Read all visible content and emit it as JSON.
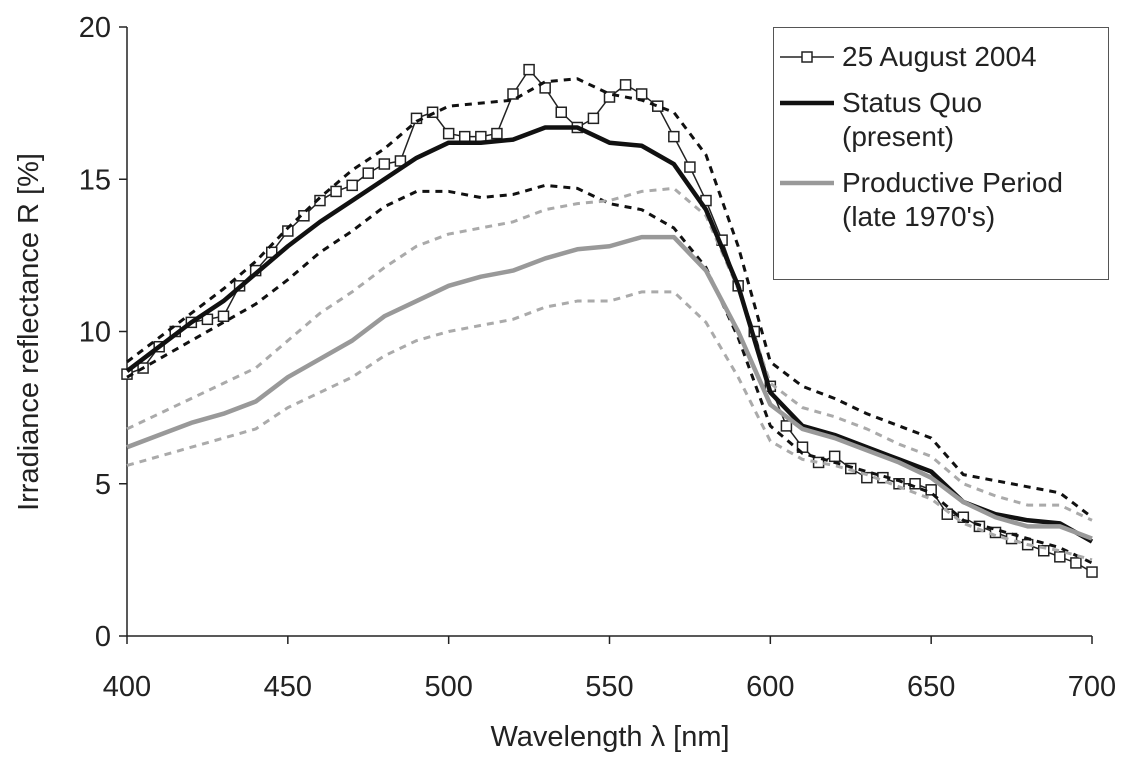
{
  "chart_data": {
    "type": "line",
    "x_label": "Wavelength λ [nm]",
    "y_label": "Irradiance reflectance R [%]",
    "xlim": [
      400,
      700
    ],
    "xticks": [
      400,
      450,
      500,
      550,
      600,
      650,
      700
    ],
    "ylim": [
      0,
      20
    ],
    "yticks": [
      0,
      5,
      10,
      15,
      20
    ],
    "series": [
      {
        "name": "25 August 2004",
        "color": "#222222",
        "width": 1.5,
        "marker": "square",
        "x": [
          400,
          405,
          410,
          415,
          420,
          425,
          430,
          435,
          440,
          445,
          450,
          455,
          460,
          465,
          470,
          475,
          480,
          485,
          490,
          495,
          500,
          505,
          510,
          515,
          520,
          525,
          530,
          535,
          540,
          545,
          550,
          555,
          560,
          565,
          570,
          575,
          580,
          585,
          590,
          595,
          600,
          605,
          610,
          615,
          620,
          625,
          630,
          635,
          640,
          645,
          650,
          655,
          660,
          665,
          670,
          675,
          680,
          685,
          690,
          695,
          700
        ],
        "values": [
          8.6,
          8.8,
          9.5,
          10.0,
          10.3,
          10.4,
          10.5,
          11.5,
          12.0,
          12.6,
          13.3,
          13.8,
          14.3,
          14.6,
          14.8,
          15.2,
          15.5,
          15.6,
          17.0,
          17.2,
          16.5,
          16.4,
          16.4,
          16.5,
          17.8,
          18.6,
          18.0,
          17.2,
          16.7,
          17.0,
          17.7,
          18.1,
          17.8,
          17.4,
          16.4,
          15.4,
          14.3,
          13.0,
          11.5,
          10.0,
          8.2,
          6.9,
          6.2,
          5.7,
          5.9,
          5.5,
          5.2,
          5.2,
          5.0,
          5.0,
          4.8,
          4.0,
          3.9,
          3.6,
          3.4,
          3.2,
          3.0,
          2.8,
          2.6,
          2.4,
          2.1
        ]
      },
      {
        "color": "#111111",
        "width": 3,
        "dash": true,
        "x": [
          400,
          410,
          420,
          430,
          440,
          450,
          460,
          470,
          480,
          490,
          500,
          510,
          520,
          530,
          540,
          550,
          560,
          570,
          580,
          590,
          600,
          610,
          620,
          630,
          640,
          650,
          660,
          670,
          680,
          690,
          700
        ],
        "values": [
          9.0,
          9.8,
          10.6,
          11.4,
          12.3,
          13.4,
          14.4,
          15.3,
          16.0,
          16.9,
          17.4,
          17.5,
          17.6,
          18.2,
          18.3,
          17.8,
          17.6,
          17.2,
          15.8,
          12.8,
          9.0,
          8.2,
          7.8,
          7.3,
          6.9,
          6.5,
          5.3,
          5.1,
          4.9,
          4.7,
          3.9
        ]
      },
      {
        "color": "#111111",
        "width": 3,
        "dash": true,
        "x": [
          400,
          410,
          420,
          430,
          440,
          450,
          460,
          470,
          480,
          490,
          500,
          510,
          520,
          530,
          540,
          550,
          560,
          570,
          580,
          590,
          600,
          610,
          620,
          630,
          640,
          650,
          660,
          670,
          680,
          690,
          700
        ],
        "values": [
          8.5,
          9.1,
          9.7,
          10.3,
          10.9,
          11.7,
          12.6,
          13.3,
          14.1,
          14.6,
          14.6,
          14.4,
          14.5,
          14.8,
          14.7,
          14.2,
          14.0,
          13.4,
          12.1,
          9.8,
          6.9,
          6.0,
          5.7,
          5.4,
          5.1,
          4.7,
          3.8,
          3.5,
          3.2,
          2.9,
          2.4
        ]
      },
      {
        "color": "#aaaaaa",
        "width": 3,
        "dash": true,
        "x": [
          400,
          410,
          420,
          430,
          440,
          450,
          460,
          470,
          480,
          490,
          500,
          510,
          520,
          530,
          540,
          550,
          560,
          570,
          580,
          590,
          600,
          610,
          620,
          630,
          640,
          650,
          660,
          670,
          680,
          690,
          700
        ],
        "values": [
          6.8,
          7.3,
          7.8,
          8.3,
          8.8,
          9.7,
          10.6,
          11.3,
          12.1,
          12.8,
          13.2,
          13.4,
          13.6,
          14.0,
          14.2,
          14.3,
          14.6,
          14.7,
          13.8,
          11.4,
          8.3,
          7.5,
          7.2,
          6.8,
          6.3,
          5.9,
          5.0,
          4.6,
          4.3,
          4.3,
          3.8
        ]
      },
      {
        "color": "#aaaaaa",
        "width": 3,
        "dash": true,
        "x": [
          400,
          410,
          420,
          430,
          440,
          450,
          460,
          470,
          480,
          490,
          500,
          510,
          520,
          530,
          540,
          550,
          560,
          570,
          580,
          590,
          600,
          610,
          620,
          630,
          640,
          650,
          660,
          670,
          680,
          690,
          700
        ],
        "values": [
          5.6,
          5.9,
          6.2,
          6.5,
          6.8,
          7.5,
          8.0,
          8.5,
          9.2,
          9.7,
          10.0,
          10.2,
          10.4,
          10.8,
          11.0,
          11.0,
          11.3,
          11.3,
          10.3,
          8.5,
          6.4,
          5.8,
          5.6,
          5.3,
          4.9,
          4.5,
          3.7,
          3.3,
          3.0,
          2.8,
          2.5
        ]
      },
      {
        "name": "Status Quo (present)",
        "color": "#111111",
        "width": 4.5,
        "x": [
          400,
          410,
          420,
          430,
          440,
          450,
          460,
          470,
          480,
          490,
          500,
          510,
          520,
          530,
          540,
          550,
          560,
          570,
          580,
          590,
          600,
          610,
          620,
          630,
          640,
          650,
          660,
          670,
          680,
          690,
          700
        ],
        "values": [
          8.7,
          9.5,
          10.3,
          11.0,
          11.9,
          12.8,
          13.6,
          14.3,
          15.0,
          15.7,
          16.2,
          16.2,
          16.3,
          16.7,
          16.7,
          16.2,
          16.1,
          15.5,
          14.0,
          11.5,
          8.0,
          6.9,
          6.6,
          6.2,
          5.8,
          5.4,
          4.4,
          4.0,
          3.8,
          3.7,
          3.1
        ]
      },
      {
        "name": "Productive Period (late 1970's)",
        "color": "#999999",
        "width": 4.5,
        "x": [
          400,
          410,
          420,
          430,
          440,
          450,
          460,
          470,
          480,
          490,
          500,
          510,
          520,
          530,
          540,
          550,
          560,
          570,
          580,
          590,
          600,
          610,
          620,
          630,
          640,
          650,
          660,
          670,
          680,
          690,
          700
        ],
        "values": [
          6.2,
          6.6,
          7.0,
          7.3,
          7.7,
          8.5,
          9.1,
          9.7,
          10.5,
          11.0,
          11.5,
          11.8,
          12.0,
          12.4,
          12.7,
          12.8,
          13.1,
          13.1,
          12.0,
          10.0,
          7.6,
          6.8,
          6.5,
          6.1,
          5.7,
          5.2,
          4.4,
          3.9,
          3.6,
          3.6,
          3.2
        ]
      }
    ]
  }
}
